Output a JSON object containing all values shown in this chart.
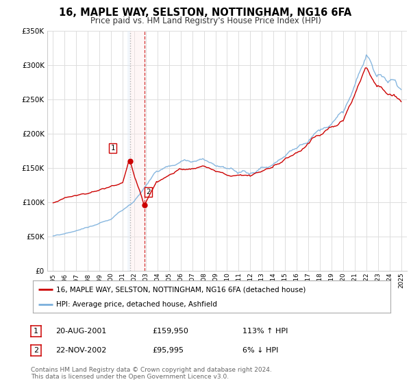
{
  "title": "16, MAPLE WAY, SELSTON, NOTTINGHAM, NG16 6FA",
  "subtitle": "Price paid vs. HM Land Registry's House Price Index (HPI)",
  "legend_line1": "16, MAPLE WAY, SELSTON, NOTTINGHAM, NG16 6FA (detached house)",
  "legend_line2": "HPI: Average price, detached house, Ashfield",
  "footer1": "Contains HM Land Registry data © Crown copyright and database right 2024.",
  "footer2": "This data is licensed under the Open Government Licence v3.0.",
  "transaction1_date": "20-AUG-2001",
  "transaction1_price": "£159,950",
  "transaction1_hpi": "113% ↑ HPI",
  "transaction2_date": "22-NOV-2002",
  "transaction2_price": "£95,995",
  "transaction2_hpi": "6% ↓ HPI",
  "transaction1_x": 2001.63,
  "transaction2_x": 2002.9,
  "transaction1_y": 159950,
  "transaction2_y": 95995,
  "ylim": [
    0,
    350000
  ],
  "xlim": [
    1994.5,
    2025.5
  ],
  "red_color": "#cc0000",
  "blue_color": "#7aafdc",
  "bg_color": "#ffffff",
  "grid_color": "#dddddd",
  "highlight_color_blue": "#dce8f5",
  "highlight_color_red": "#fde8e8"
}
